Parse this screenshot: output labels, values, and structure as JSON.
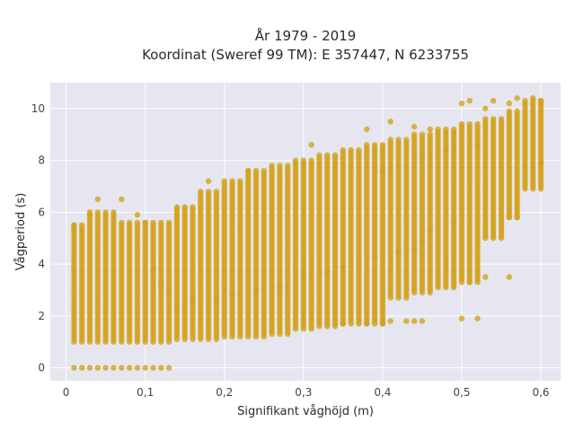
{
  "chart_data": {
    "type": "scatter",
    "title": "År 1979 - 2019",
    "subtitle": "Koordinat (Sweref 99 TM): E 357447, N 6233755",
    "xlabel": "Signifikant våghöjd (m)",
    "ylabel": "Vågperiod (s)",
    "xlim": [
      -0.02,
      0.625
    ],
    "ylim": [
      -0.5,
      11.0
    ],
    "x_ticks": [
      0,
      0.1,
      0.2,
      0.3,
      0.4,
      0.5,
      0.6
    ],
    "x_tick_labels": [
      "0",
      "0,1",
      "0,2",
      "0,3",
      "0,4",
      "0,5",
      "0,6"
    ],
    "y_ticks": [
      0,
      2,
      4,
      6,
      8,
      10
    ],
    "y_tick_labels": [
      "0",
      "2",
      "4",
      "6",
      "8",
      "10"
    ],
    "grid": true,
    "legend": "none",
    "x_step": 0.01,
    "y_step": 0.1,
    "bands": [
      {
        "x_from": 0.01,
        "x_to": 0.13,
        "y_min": 0.0,
        "y_max": 0.0
      },
      {
        "x_from": 0.01,
        "x_to": 0.02,
        "y_min": 1.0,
        "y_max": 5.5
      },
      {
        "x_from": 0.03,
        "x_to": 0.06,
        "y_min": 1.0,
        "y_max": 6.0
      },
      {
        "x_from": 0.07,
        "x_to": 0.1,
        "y_min": 1.0,
        "y_max": 5.6
      },
      {
        "x_from": 0.11,
        "x_to": 0.13,
        "y_min": 1.0,
        "y_max": 5.6
      },
      {
        "x_from": 0.14,
        "x_to": 0.16,
        "y_min": 1.1,
        "y_max": 6.2
      },
      {
        "x_from": 0.17,
        "x_to": 0.19,
        "y_min": 1.1,
        "y_max": 6.8
      },
      {
        "x_from": 0.2,
        "x_to": 0.22,
        "y_min": 1.2,
        "y_max": 7.2
      },
      {
        "x_from": 0.23,
        "x_to": 0.25,
        "y_min": 1.2,
        "y_max": 7.6
      },
      {
        "x_from": 0.26,
        "x_to": 0.28,
        "y_min": 1.3,
        "y_max": 7.8
      },
      {
        "x_from": 0.29,
        "x_to": 0.31,
        "y_min": 1.5,
        "y_max": 8.0
      },
      {
        "x_from": 0.32,
        "x_to": 0.34,
        "y_min": 1.6,
        "y_max": 8.2
      },
      {
        "x_from": 0.35,
        "x_to": 0.37,
        "y_min": 1.7,
        "y_max": 8.4
      },
      {
        "x_from": 0.38,
        "x_to": 0.4,
        "y_min": 1.7,
        "y_max": 8.6
      },
      {
        "x_from": 0.41,
        "x_to": 0.43,
        "y_min": 2.7,
        "y_max": 8.8
      },
      {
        "x_from": 0.44,
        "x_to": 0.46,
        "y_min": 2.9,
        "y_max": 9.0
      },
      {
        "x_from": 0.47,
        "x_to": 0.49,
        "y_min": 3.1,
        "y_max": 9.2
      },
      {
        "x_from": 0.5,
        "x_to": 0.52,
        "y_min": 3.3,
        "y_max": 9.4
      },
      {
        "x_from": 0.53,
        "x_to": 0.55,
        "y_min": 5.0,
        "y_max": 9.6
      },
      {
        "x_from": 0.56,
        "x_to": 0.57,
        "y_min": 5.8,
        "y_max": 9.9
      },
      {
        "x_from": 0.58,
        "x_to": 0.6,
        "y_min": 6.9,
        "y_max": 10.3
      }
    ],
    "points": [
      {
        "x": 0.01,
        "y": 5.5
      },
      {
        "x": 0.03,
        "y": 5.9
      },
      {
        "x": 0.04,
        "y": 6.5
      },
      {
        "x": 0.07,
        "y": 6.5
      },
      {
        "x": 0.09,
        "y": 5.9
      },
      {
        "x": 0.1,
        "y": 5.6
      },
      {
        "x": 0.18,
        "y": 7.2
      },
      {
        "x": 0.23,
        "y": 7.6
      },
      {
        "x": 0.31,
        "y": 8.6
      },
      {
        "x": 0.38,
        "y": 9.2
      },
      {
        "x": 0.41,
        "y": 9.5
      },
      {
        "x": 0.44,
        "y": 9.3
      },
      {
        "x": 0.46,
        "y": 9.2
      },
      {
        "x": 0.5,
        "y": 10.2
      },
      {
        "x": 0.51,
        "y": 10.3
      },
      {
        "x": 0.53,
        "y": 10.0
      },
      {
        "x": 0.54,
        "y": 10.3
      },
      {
        "x": 0.56,
        "y": 10.2
      },
      {
        "x": 0.57,
        "y": 10.4
      },
      {
        "x": 0.59,
        "y": 10.4
      },
      {
        "x": 0.6,
        "y": 10.3
      },
      {
        "x": 0.6,
        "y": 7.9
      },
      {
        "x": 0.57,
        "y": 5.8
      },
      {
        "x": 0.56,
        "y": 5.8
      },
      {
        "x": 0.56,
        "y": 3.5
      },
      {
        "x": 0.53,
        "y": 3.5
      },
      {
        "x": 0.51,
        "y": 3.3
      },
      {
        "x": 0.5,
        "y": 1.9
      },
      {
        "x": 0.52,
        "y": 1.9
      },
      {
        "x": 0.45,
        "y": 1.8
      },
      {
        "x": 0.43,
        "y": 1.8
      },
      {
        "x": 0.44,
        "y": 1.8
      },
      {
        "x": 0.41,
        "y": 1.8
      },
      {
        "x": 0.35,
        "y": 1.7
      },
      {
        "x": 0.38,
        "y": 1.7
      },
      {
        "x": 0.4,
        "y": 1.7
      },
      {
        "x": 0.45,
        "y": 4.9
      },
      {
        "x": 0.44,
        "y": 4.6
      },
      {
        "x": 0.42,
        "y": 4.5
      },
      {
        "x": 0.39,
        "y": 4.3
      },
      {
        "x": 0.37,
        "y": 4.0
      },
      {
        "x": 0.35,
        "y": 3.9
      },
      {
        "x": 0.4,
        "y": 7.6
      },
      {
        "x": 0.45,
        "y": 8.1
      },
      {
        "x": 0.48,
        "y": 8.4
      },
      {
        "x": 0.52,
        "y": 8.6
      },
      {
        "x": 0.46,
        "y": 5.3
      },
      {
        "x": 0.49,
        "y": 5.6
      },
      {
        "x": 0.33,
        "y": 3.7
      },
      {
        "x": 0.3,
        "y": 3.5
      },
      {
        "x": 0.27,
        "y": 3.1
      },
      {
        "x": 0.24,
        "y": 3.0
      },
      {
        "x": 0.21,
        "y": 2.8
      },
      {
        "x": 0.19,
        "y": 2.6
      },
      {
        "x": 0.16,
        "y": 2.5
      },
      {
        "x": 0.14,
        "y": 2.4
      },
      {
        "x": 0.13,
        "y": 2.9
      },
      {
        "x": 0.12,
        "y": 3.3
      },
      {
        "x": 0.11,
        "y": 3.8
      }
    ],
    "colors": {
      "marker": "#D4A017",
      "plot_bg": "#E5E6EF",
      "grid": "#FFFFFF",
      "text": "#2a2a2a"
    }
  }
}
